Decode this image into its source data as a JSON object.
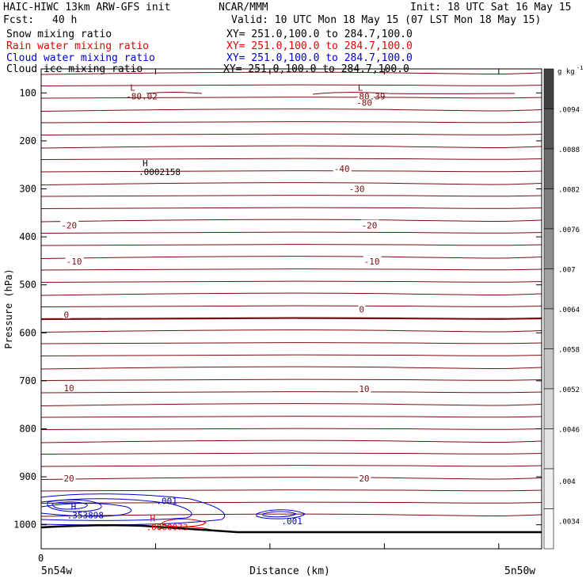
{
  "header": {
    "title": "HAIC-HIWC 13km ARW-GFS init",
    "org": "NCAR/MMM",
    "init": "Init: 18 UTC Sat 16 May 15",
    "fcst_label": "Fcst:",
    "fcst_value": "40 h",
    "valid": "Valid: 10 UTC Mon 18 May 15 (07 LST Mon 18 May 15)"
  },
  "fields": [
    {
      "name": "Snow mixing ratio",
      "xy": "XY= 251.0,100.0 to 284.7,100.0",
      "color": "#000000"
    },
    {
      "name": "Rain water mixing ratio",
      "xy": "XY= 251.0,100.0 to 284.7,100.0",
      "color": "#e60000"
    },
    {
      "name": "Cloud water mixing ratio",
      "xy": "XY= 251.0,100.0 to 284.7,100.0",
      "color": "#0000cc"
    },
    {
      "name": "Cloud ice mixing ratio",
      "xy": "XY= 251.0,100.0 to 284.7,100.0",
      "color": "#000000"
    }
  ],
  "colors": {
    "temperature": "#7a0e0e",
    "rain": "#e60000",
    "cloud_water": "#0000cc",
    "ground": "#000000"
  },
  "chart_data": {
    "type": "contour",
    "ylabel": "Pressure (hPa)",
    "xlabel": "Distance (km)",
    "x_start_label": "5n54w",
    "x_end_label": "5n50w",
    "x_origin_label": "0",
    "ylim": [
      1050,
      50
    ],
    "y_ticks": [
      100,
      200,
      300,
      400,
      500,
      600,
      700,
      800,
      900,
      1000
    ],
    "y_tick_labels": [
      "100",
      "200",
      "300",
      "400",
      "500",
      "600",
      "700",
      "800",
      "900",
      "1000"
    ],
    "x_tick_fractions": [
      0,
      0.2286,
      0.4571,
      0.6857,
      0.9143
    ],
    "colorbar": {
      "units": "g kg",
      "units_superscript": "-1",
      "labels": [
        ".0094",
        ".0088",
        ".0082",
        ".0076",
        ".007",
        ".0064",
        ".0058",
        ".0052",
        ".0046",
        ".004",
        ".0034"
      ],
      "shades": [
        "#414141",
        "#575757",
        "#6b6b6b",
        "#7d7d7d",
        "#8f8f8f",
        "#a1a1a1",
        "#b3b3b3",
        "#c4c4c4",
        "#d4d4d4",
        "#e3e3e3",
        "#efefef",
        "#fafafa"
      ]
    },
    "temperature_labels": [
      {
        "text": "-80",
        "x": 0.63,
        "p": 120
      },
      {
        "text": "-40",
        "x": 0.585,
        "p": 258
      },
      {
        "text": "-30",
        "x": 0.615,
        "p": 300
      },
      {
        "text": "-20",
        "x": 0.04,
        "p": 376
      },
      {
        "text": "-20",
        "x": 0.64,
        "p": 376
      },
      {
        "text": "-10",
        "x": 0.05,
        "p": 451
      },
      {
        "text": "-10",
        "x": 0.645,
        "p": 451
      },
      {
        "text": "0",
        "x": 0.045,
        "p": 562
      },
      {
        "text": "0",
        "x": 0.635,
        "p": 551
      },
      {
        "text": "10",
        "x": 0.045,
        "p": 715
      },
      {
        "text": "10",
        "x": 0.635,
        "p": 717
      },
      {
        "text": "20",
        "x": 0.045,
        "p": 903
      },
      {
        "text": "20",
        "x": 0.635,
        "p": 903
      }
    ],
    "extrema": [
      {
        "marker": "L",
        "value": "-80.02",
        "x": 0.225,
        "p": 95,
        "color": "#7a0e0e"
      },
      {
        "marker": "L",
        "value": "-80.39",
        "x": 0.68,
        "p": 95,
        "color": "#7a0e0e"
      },
      {
        "marker": "H",
        "value": ".0002158",
        "x": 0.25,
        "p": 253,
        "color": "#000000"
      },
      {
        "marker": "H",
        "value": ".353898",
        "x": 0.107,
        "p": 968,
        "color": "#0000cc"
      },
      {
        "marker": "H",
        "value": ".0000973",
        "x": 0.265,
        "p": 993,
        "color": "#e60000"
      }
    ],
    "cloud_water_labels": [
      {
        "text": ".001",
        "x": 0.23,
        "p": 950
      },
      {
        "text": ".001",
        "x": 0.48,
        "p": 992
      }
    ]
  }
}
